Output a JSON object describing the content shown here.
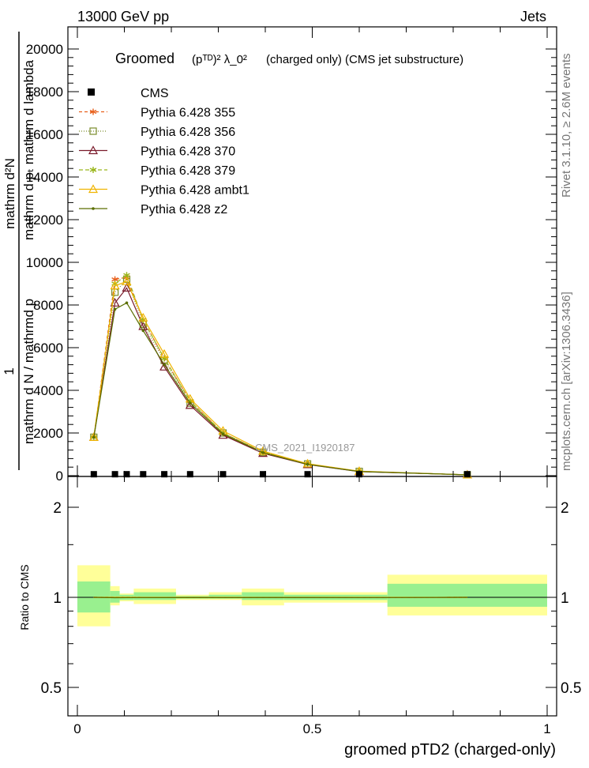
{
  "header": {
    "left": "13000 GeV pp",
    "right": "Jets"
  },
  "side_labels": {
    "rivet": "Rivet 3.1.10, ≥ 2.6M events",
    "mcplots": "mcplots.cern.ch [arXiv:1306.3436]"
  },
  "watermark": "CMS_2021_I1920187",
  "main_panel": {
    "title_prefix": "Groomed",
    "title_formula": "(pᵀᴰ)² λ_0²",
    "title_suffix": "(charged only) (CMS jet substructure)",
    "ylabel_numerator": "mathrm d²N",
    "ylabel_numerator2": "mathrm d pₜ mathrm d lambda",
    "ylabel_one": "1",
    "ylabel_denominator": "mathrm d N / mathrmd p",
    "y_tick_labels": [
      "0",
      "2000",
      "4000",
      "6000",
      "8000",
      "10000",
      "12000",
      "14000",
      "16000",
      "18000",
      "20000"
    ]
  },
  "ratio_panel": {
    "ylabel": "Ratio to CMS",
    "y_tick_labels": [
      "0.5",
      "1",
      "2"
    ]
  },
  "x_axis": {
    "label": "groomed pTD2 (charged-only)",
    "tick_labels": [
      "0",
      "0.5",
      "1"
    ]
  },
  "chart_data": {
    "type": "line",
    "x_range": [
      0,
      1
    ],
    "main_ylim": [
      0,
      21000
    ],
    "ratio_ylim": [
      0.4,
      2.4
    ],
    "ratio_scale": "log",
    "legend_position": "top-left",
    "x": [
      0.035,
      0.08,
      0.105,
      0.14,
      0.185,
      0.24,
      0.31,
      0.395,
      0.49,
      0.6,
      0.83
    ],
    "cms": {
      "name": "CMS",
      "values": [
        30,
        30,
        30,
        30,
        30,
        30,
        30,
        30,
        30,
        30,
        30
      ]
    },
    "series": [
      {
        "name": "Pythia 6.428 355",
        "color": "#e8601c",
        "marker": "star",
        "dash": "4,3",
        "values": [
          1800,
          9200,
          9300,
          7300,
          5500,
          3500,
          2000,
          1100,
          550,
          200,
          40
        ]
      },
      {
        "name": "Pythia 6.428 356",
        "color": "#7a8b2b",
        "marker": "square",
        "dash": "1,2",
        "values": [
          1800,
          8600,
          9200,
          7100,
          5400,
          3400,
          2000,
          1100,
          550,
          200,
          40
        ]
      },
      {
        "name": "Pythia 6.428 370",
        "color": "#7a1b2b",
        "marker": "triangle",
        "dash": "",
        "values": [
          1800,
          8100,
          8800,
          7000,
          5100,
          3300,
          1900,
          1050,
          520,
          190,
          40
        ]
      },
      {
        "name": "Pythia 6.428 379",
        "color": "#9ab61c",
        "marker": "star",
        "dash": "5,3",
        "values": [
          1800,
          9000,
          9400,
          7300,
          5500,
          3500,
          2000,
          1100,
          550,
          200,
          40
        ]
      },
      {
        "name": "Pythia 6.428 ambt1",
        "color": "#f0b400",
        "marker": "triangle",
        "dash": "",
        "values": [
          1800,
          8900,
          9100,
          7400,
          5700,
          3600,
          2100,
          1150,
          560,
          210,
          40
        ]
      },
      {
        "name": "Pythia 6.428 z2",
        "color": "#5a6e00",
        "marker": "dot",
        "dash": "",
        "values": [
          1800,
          7800,
          8100,
          6800,
          5200,
          3400,
          1950,
          1080,
          530,
          195,
          40
        ]
      }
    ],
    "ratio_bands": [
      {
        "x0": 0.0,
        "x1": 0.07,
        "green": [
          0.89,
          1.13
        ],
        "yellow": [
          0.8,
          1.28
        ]
      },
      {
        "x0": 0.07,
        "x1": 0.09,
        "green": [
          0.96,
          1.05
        ],
        "yellow": [
          0.94,
          1.09
        ]
      },
      {
        "x0": 0.09,
        "x1": 0.12,
        "green": [
          0.98,
          1.02
        ],
        "yellow": [
          0.97,
          1.03
        ]
      },
      {
        "x0": 0.12,
        "x1": 0.21,
        "green": [
          0.98,
          1.04
        ],
        "yellow": [
          0.95,
          1.07
        ]
      },
      {
        "x0": 0.21,
        "x1": 0.28,
        "green": [
          0.99,
          1.01
        ],
        "yellow": [
          0.98,
          1.02
        ]
      },
      {
        "x0": 0.28,
        "x1": 0.35,
        "green": [
          0.99,
          1.02
        ],
        "yellow": [
          0.98,
          1.04
        ]
      },
      {
        "x0": 0.35,
        "x1": 0.44,
        "green": [
          0.98,
          1.04
        ],
        "yellow": [
          0.94,
          1.07
        ]
      },
      {
        "x0": 0.44,
        "x1": 0.66,
        "green": [
          0.98,
          1.02
        ],
        "yellow": [
          0.96,
          1.04
        ]
      },
      {
        "x0": 0.66,
        "x1": 1.0,
        "green": [
          0.93,
          1.11
        ],
        "yellow": [
          0.87,
          1.19
        ]
      }
    ]
  }
}
